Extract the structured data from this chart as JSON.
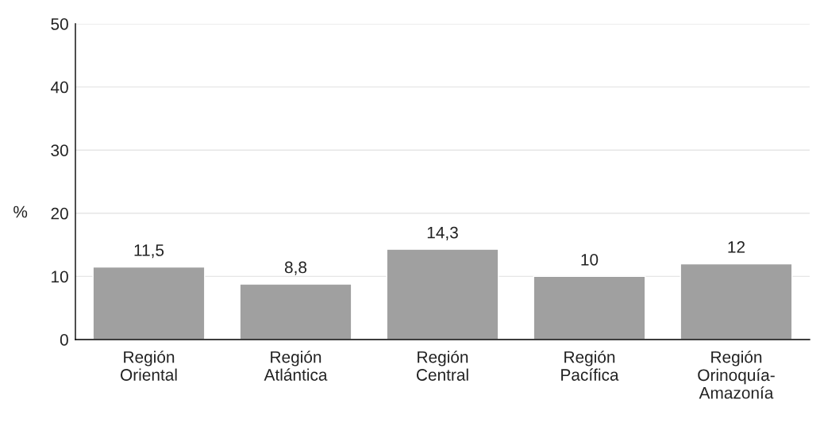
{
  "chart_data": {
    "type": "bar",
    "ylabel": "%",
    "categories": [
      "Región\nOriental",
      "Región\nAtlántica",
      "Región\nCentral",
      "Región\nPacífica",
      "Región\nOrinoquía-\nAmazonía"
    ],
    "values": [
      11.5,
      8.8,
      14.3,
      10,
      12
    ],
    "value_labels": [
      "11,5",
      "8,8",
      "14,3",
      "10",
      "12"
    ],
    "color": "#a0a0a0",
    "ylim": [
      0,
      50
    ],
    "yticks": [
      0,
      10,
      20,
      30,
      40,
      50
    ],
    "grid": "y"
  }
}
